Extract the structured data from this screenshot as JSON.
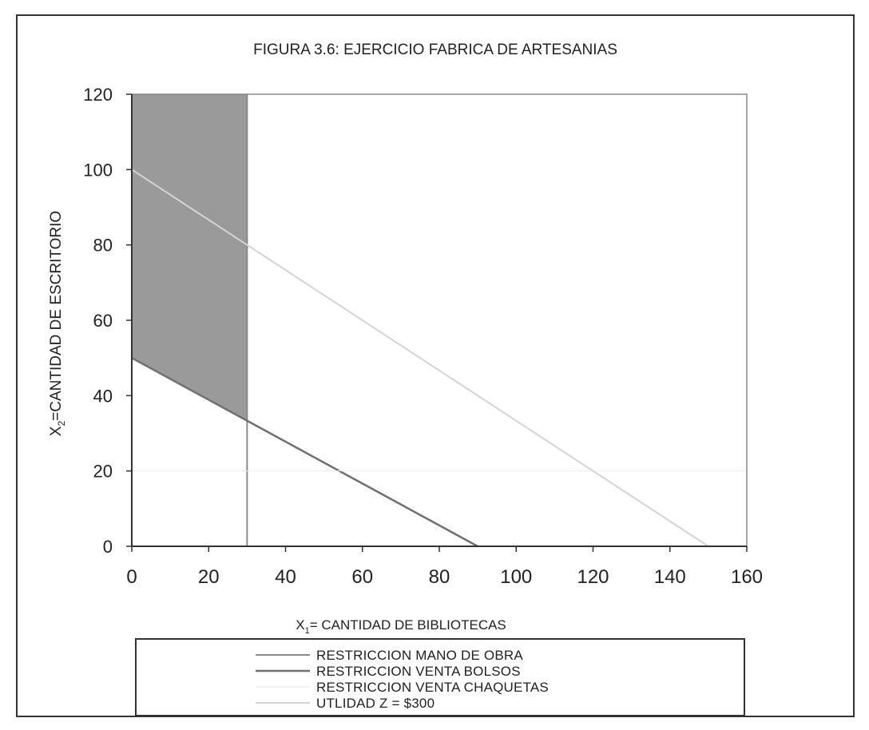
{
  "chart_data": {
    "type": "line",
    "title": "FIGURA 3.6:  EJERCICIO FABRICA DE ARTESANIAS",
    "xlabel": "X1= CANTIDAD DE BIBLIOTECAS",
    "xlabel_main": "X",
    "xlabel_sub": "1",
    "xlabel_rest": "= CANTIDAD DE BIBLIOTECAS",
    "ylabel": "X2=CANTIDAD DE ESCRITORIO",
    "ylabel_main": "X",
    "ylabel_sub": "2",
    "ylabel_rest": "=CANTIDAD DE ESCRITORIO",
    "xlim": [
      0,
      160
    ],
    "ylim": [
      0,
      120
    ],
    "xticks": [
      0,
      20,
      40,
      60,
      80,
      100,
      120,
      140,
      160
    ],
    "yticks": [
      0,
      20,
      40,
      60,
      80,
      100,
      120
    ],
    "grid": false,
    "legend_position": "bottom",
    "feasible_region": {
      "points": [
        [
          0,
          50
        ],
        [
          0,
          120
        ],
        [
          30,
          120
        ],
        [
          30,
          33.33
        ]
      ],
      "color": "#9a9a9a"
    },
    "series": [
      {
        "name": "RESTRICCION MANO DE OBRA",
        "x": [
          30,
          30
        ],
        "y": [
          0,
          120
        ],
        "color": "#8a8a8a",
        "width": 2
      },
      {
        "name": "RESTRICCION VENTA BOLSOS",
        "x": [
          0,
          90
        ],
        "y": [
          50,
          0
        ],
        "color": "#707070",
        "width": 2.5
      },
      {
        "name": "RESTRICCION VENTA CHAQUETAS",
        "x": [
          0,
          160
        ],
        "y": [
          20,
          20
        ],
        "color": "#eeeeee",
        "width": 1
      },
      {
        "name": "UTLIDAD Z = $300",
        "x": [
          0,
          150
        ],
        "y": [
          100,
          0
        ],
        "color": "#d4d4d4",
        "width": 2
      }
    ]
  }
}
